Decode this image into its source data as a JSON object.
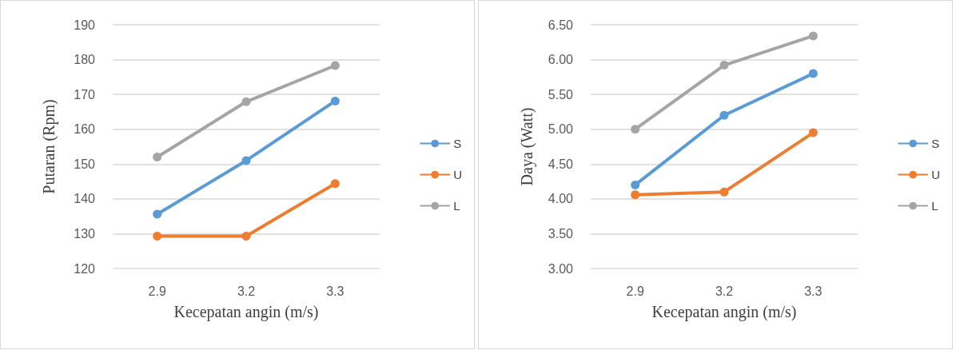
{
  "chart_data": [
    {
      "type": "line",
      "categories": [
        "2.9",
        "3.2",
        "3.3"
      ],
      "xlabel": "Kecepatan angin (m/s)",
      "ylabel": "Putaran (Rpm)",
      "ylim": [
        120,
        190
      ],
      "yticks": [
        120,
        130,
        140,
        150,
        160,
        170,
        180,
        190
      ],
      "grid": "y",
      "legend": "right",
      "marker": "circle",
      "series": [
        {
          "name": "S",
          "color": "#5b9bd5",
          "values": [
            135.6,
            151,
            168.1
          ]
        },
        {
          "name": "U",
          "color": "#ed7d31",
          "values": [
            129.3,
            129.3,
            144.4
          ]
        },
        {
          "name": "L",
          "color": "#a5a5a5",
          "values": [
            152,
            167.9,
            178.3
          ]
        }
      ]
    },
    {
      "type": "line",
      "categories": [
        "2.9",
        "3.2",
        "3.3"
      ],
      "xlabel": "Kecepatan angin (m/s)",
      "ylabel": "Daya (Watt)",
      "ylim": [
        3,
        6.5
      ],
      "yticks": [
        {
          "value": 3,
          "label": "3.00"
        },
        {
          "value": 3.5,
          "label": "3.50"
        },
        {
          "value": 4,
          "label": "4.00"
        },
        {
          "value": 4.5,
          "label": "4.50"
        },
        {
          "value": 5,
          "label": "5.00"
        },
        {
          "value": 5.5,
          "label": "5.50"
        },
        {
          "value": 6,
          "label": "6.00"
        },
        {
          "value": 6.5,
          "label": "6.50"
        }
      ],
      "grid": "y",
      "legend": "right",
      "marker": "circle",
      "series": [
        {
          "name": "S",
          "color": "#5b9bd5",
          "values": [
            4.2,
            5.2,
            5.8
          ]
        },
        {
          "name": "U",
          "color": "#ed7d31",
          "values": [
            4.06,
            4.1,
            4.95
          ]
        },
        {
          "name": "L",
          "color": "#a5a5a5",
          "values": [
            5.0,
            5.92,
            6.34
          ]
        }
      ]
    }
  ]
}
